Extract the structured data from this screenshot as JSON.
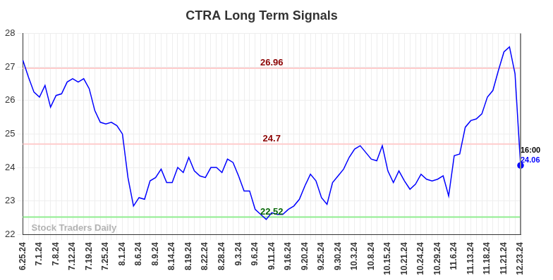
{
  "chart_data": {
    "type": "line",
    "title": "CTRA Long Term Signals",
    "categories": [
      "6.25.24",
      null,
      null,
      "7.1.24",
      null,
      null,
      "7.8.24",
      null,
      null,
      "7.12.24",
      null,
      null,
      "7.19.24",
      null,
      null,
      "7.25.24",
      null,
      null,
      "8.1.24",
      null,
      null,
      "8.6.24",
      null,
      null,
      "8.9.24",
      null,
      null,
      "8.14.24",
      null,
      null,
      "8.19.24",
      null,
      null,
      "8.22.24",
      null,
      null,
      "8.28.24",
      null,
      null,
      "9.3.24",
      null,
      null,
      "9.6.24",
      null,
      null,
      "9.11.24",
      null,
      null,
      "9.16.24",
      null,
      null,
      "9.20.24",
      null,
      null,
      "9.25.24",
      null,
      null,
      "9.30.24",
      null,
      null,
      "10.3.24",
      null,
      null,
      "10.8.24",
      null,
      null,
      "10.15.24",
      null,
      null,
      "10.21.24",
      null,
      null,
      "10.24.24",
      null,
      null,
      "10.29.24",
      null,
      null,
      "11.6.24",
      null,
      null,
      "11.13.24",
      null,
      null,
      "11.18.24",
      null,
      null,
      "11.21.24",
      null,
      null,
      "12.23.24"
    ],
    "values": [
      27.2,
      26.7,
      26.25,
      26.1,
      26.45,
      25.8,
      26.15,
      26.2,
      26.55,
      26.65,
      26.55,
      26.65,
      26.35,
      25.7,
      25.35,
      25.3,
      25.35,
      25.25,
      25.0,
      23.7,
      22.85,
      23.1,
      23.05,
      23.6,
      23.7,
      23.95,
      23.55,
      23.55,
      24.0,
      23.85,
      24.3,
      23.9,
      23.75,
      23.7,
      24.0,
      24.0,
      23.85,
      24.25,
      24.15,
      23.75,
      23.3,
      23.3,
      22.75,
      22.6,
      22.45,
      22.65,
      22.6,
      22.6,
      22.75,
      22.85,
      23.05,
      23.45,
      23.8,
      23.6,
      23.1,
      22.9,
      23.55,
      23.75,
      23.95,
      24.3,
      24.55,
      24.65,
      24.45,
      24.25,
      24.2,
      24.65,
      23.9,
      23.55,
      23.9,
      23.6,
      23.35,
      23.5,
      23.8,
      23.65,
      23.6,
      23.65,
      23.75,
      23.15,
      24.35,
      24.4,
      25.2,
      25.4,
      25.45,
      25.6,
      26.1,
      26.3,
      26.9,
      27.45,
      27.6,
      26.8,
      24.06
    ],
    "color": "#0000ff",
    "ylim": [
      22,
      28
    ],
    "yticks": [
      22,
      23,
      24,
      25,
      26,
      27,
      28
    ],
    "grid": true,
    "reference_lines": [
      {
        "value": 26.96,
        "color": "#ffcccc",
        "label_color": "#8b0000"
      },
      {
        "value": 24.7,
        "color": "#ffcccc",
        "label_color": "#8b0000"
      },
      {
        "value": 22.52,
        "color": "#90ee90",
        "label_color": "#006400"
      }
    ],
    "last_point_label": "16:00",
    "watermark": "Stock Traders Daily"
  }
}
